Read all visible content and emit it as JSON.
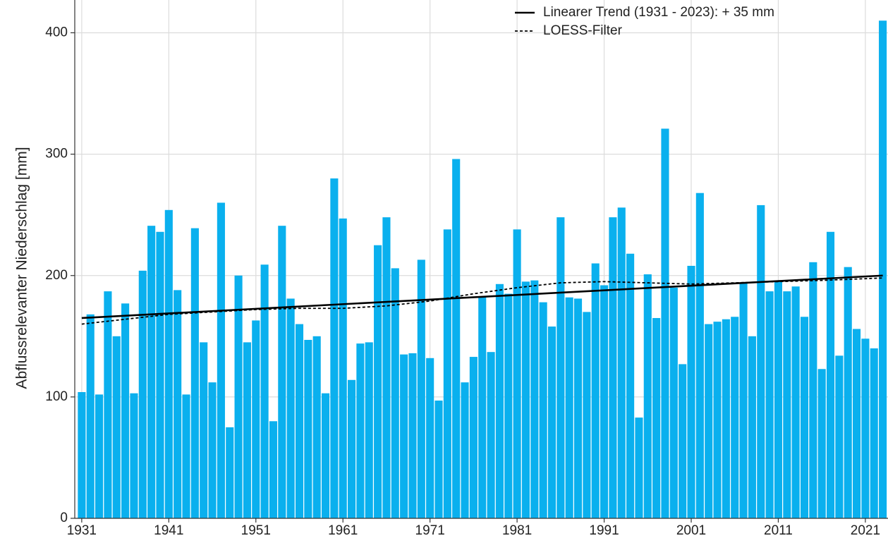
{
  "chart_data": {
    "type": "bar",
    "y_label": "Abflussrelevanter Niederschlag [mm]",
    "color": "#0ab0ee",
    "x": [
      1931,
      1932,
      1933,
      1934,
      1935,
      1936,
      1937,
      1938,
      1939,
      1940,
      1941,
      1942,
      1943,
      1944,
      1945,
      1946,
      1947,
      1948,
      1949,
      1950,
      1951,
      1952,
      1953,
      1954,
      1955,
      1956,
      1957,
      1958,
      1959,
      1960,
      1961,
      1962,
      1963,
      1964,
      1965,
      1966,
      1967,
      1968,
      1969,
      1970,
      1971,
      1972,
      1973,
      1974,
      1975,
      1976,
      1977,
      1978,
      1979,
      1980,
      1981,
      1982,
      1983,
      1984,
      1985,
      1986,
      1987,
      1988,
      1989,
      1990,
      1991,
      1992,
      1993,
      1994,
      1995,
      1996,
      1997,
      1998,
      1999,
      2000,
      2001,
      2002,
      2003,
      2004,
      2005,
      2006,
      2007,
      2008,
      2009,
      2010,
      2011,
      2012,
      2013,
      2014,
      2015,
      2016,
      2017,
      2018,
      2019,
      2020,
      2021,
      2022,
      2023
    ],
    "values": [
      104,
      168,
      102,
      187,
      150,
      177,
      103,
      204,
      241,
      236,
      254,
      188,
      102,
      239,
      145,
      112,
      260,
      75,
      200,
      145,
      163,
      209,
      80,
      241,
      181,
      160,
      147,
      150,
      103,
      280,
      247,
      114,
      144,
      145,
      225,
      248,
      206,
      135,
      136,
      213,
      132,
      97,
      238,
      296,
      112,
      133,
      182,
      137,
      193,
      185,
      238,
      195,
      196,
      178,
      158,
      248,
      182,
      181,
      170,
      210,
      192,
      248,
      256,
      218,
      83,
      201,
      165,
      321,
      190,
      127,
      208,
      268,
      160,
      162,
      164,
      166,
      194,
      150,
      258,
      187,
      195,
      187,
      191,
      166,
      211,
      123,
      236,
      134,
      207,
      156,
      148,
      140,
      410
    ],
    "lines": [
      {
        "name": "Linearer Trend (1931 - 2023): + 35 mm",
        "color": "#000000",
        "dash": false,
        "x": [
          1931,
          2023
        ],
        "values": [
          165,
          200
        ]
      },
      {
        "name": "LOESS-Filter",
        "color": "#000000",
        "dash": true,
        "x": [
          1931,
          1936,
          1941,
          1946,
          1951,
          1956,
          1961,
          1966,
          1971,
          1976,
          1981,
          1986,
          1991,
          1996,
          2001,
          2006,
          2011,
          2016,
          2023
        ],
        "values": [
          160,
          164,
          168,
          170,
          172,
          173,
          173,
          175,
          179,
          185,
          190,
          194,
          195,
          194,
          193,
          194,
          195,
          196,
          198
        ]
      }
    ],
    "xlim": [
      1930.2,
      2023.6
    ],
    "xticks": [
      1931,
      1941,
      1951,
      1961,
      1971,
      1981,
      1991,
      2001,
      2011,
      2021
    ],
    "ylim": [
      0,
      427
    ],
    "yticks": [
      0,
      100,
      200,
      300,
      400
    ],
    "grid": true,
    "legend": "top-right"
  }
}
